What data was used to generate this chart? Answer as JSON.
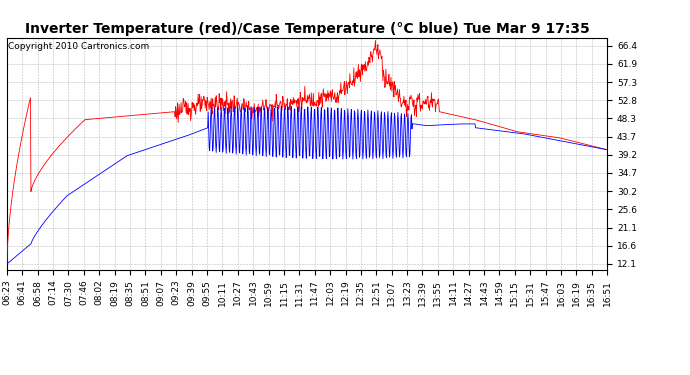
{
  "title": "Inverter Temperature (red)/Case Temperature (°C blue) Tue Mar 9 17:35",
  "copyright": "Copyright 2010 Cartronics.com",
  "background_color": "#ffffff",
  "plot_bg_color": "#ffffff",
  "grid_color": "#bbbbbb",
  "y_ticks": [
    12.1,
    16.6,
    21.1,
    25.6,
    30.2,
    34.7,
    39.2,
    43.7,
    48.3,
    52.8,
    57.3,
    61.9,
    66.4
  ],
  "y_min": 10.5,
  "y_max": 68.5,
  "x_labels": [
    "06:23",
    "06:41",
    "06:58",
    "07:14",
    "07:30",
    "07:46",
    "08:02",
    "08:19",
    "08:35",
    "08:51",
    "09:07",
    "09:23",
    "09:39",
    "09:55",
    "10:11",
    "10:27",
    "10:43",
    "10:59",
    "11:15",
    "11:31",
    "11:47",
    "12:03",
    "12:19",
    "12:35",
    "12:51",
    "13:07",
    "13:23",
    "13:39",
    "13:55",
    "14:11",
    "14:27",
    "14:43",
    "14:59",
    "15:15",
    "15:31",
    "15:47",
    "16:03",
    "16:19",
    "16:35",
    "16:51"
  ],
  "red_line_color": "#ff0000",
  "blue_line_color": "#0000ff",
  "title_fontsize": 10,
  "tick_fontsize": 6.5,
  "copyright_fontsize": 6.5
}
